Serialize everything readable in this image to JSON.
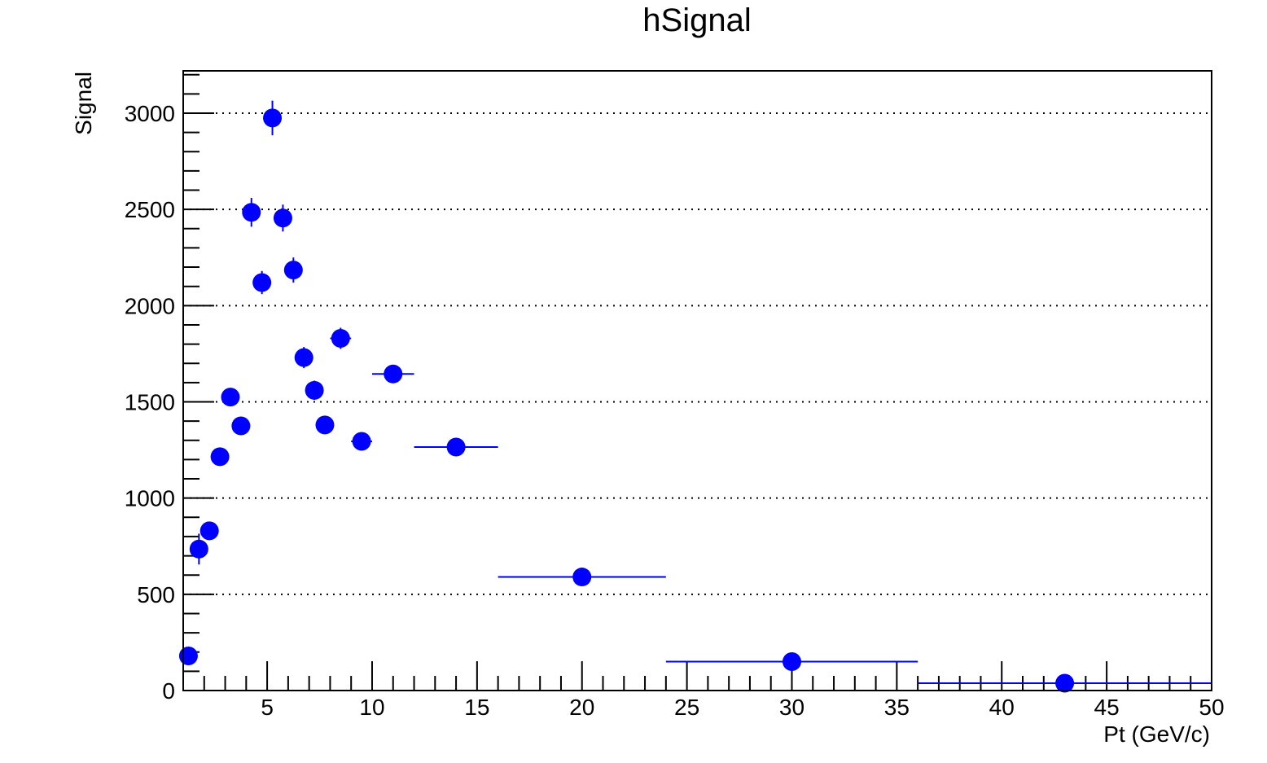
{
  "chart_data": {
    "type": "scatter",
    "title": "hSignal",
    "xlabel": "Pt (GeV/c)",
    "ylabel": "Signal",
    "xlim": [
      1,
      50
    ],
    "ylim": [
      0,
      3220
    ],
    "grid": "y-dotted",
    "x_ticks": [
      5,
      10,
      15,
      20,
      25,
      30,
      35,
      40,
      45,
      50
    ],
    "y_ticks": [
      0,
      500,
      1000,
      1500,
      2000,
      2500,
      3000
    ],
    "x_tick_labels": [
      "5",
      "10",
      "15",
      "20",
      "25",
      "30",
      "35",
      "40",
      "45",
      "50"
    ],
    "y_tick_labels": [
      "0",
      "500",
      "1000",
      "1500",
      "2000",
      "2500",
      "3000"
    ],
    "color": "#0000ff",
    "points": [
      {
        "x": 1.25,
        "xlo": 1.0,
        "xhi": 1.5,
        "y": 180,
        "yerr": 30
      },
      {
        "x": 1.75,
        "xlo": 1.5,
        "xhi": 2.0,
        "y": 735,
        "yerr": 80
      },
      {
        "x": 2.25,
        "xlo": 2.0,
        "xhi": 2.5,
        "y": 830,
        "yerr": 35
      },
      {
        "x": 2.75,
        "xlo": 2.5,
        "xhi": 3.0,
        "y": 1215,
        "yerr": 40
      },
      {
        "x": 3.25,
        "xlo": 3.0,
        "xhi": 3.5,
        "y": 1525,
        "yerr": 45
      },
      {
        "x": 3.75,
        "xlo": 3.5,
        "xhi": 4.0,
        "y": 1375,
        "yerr": 40
      },
      {
        "x": 4.25,
        "xlo": 4.0,
        "xhi": 4.5,
        "y": 2485,
        "yerr": 75
      },
      {
        "x": 4.75,
        "xlo": 4.5,
        "xhi": 5.0,
        "y": 2120,
        "yerr": 60
      },
      {
        "x": 5.25,
        "xlo": 5.0,
        "xhi": 5.5,
        "y": 2975,
        "yerr": 90
      },
      {
        "x": 5.75,
        "xlo": 5.5,
        "xhi": 6.0,
        "y": 2455,
        "yerr": 70
      },
      {
        "x": 6.25,
        "xlo": 6.0,
        "xhi": 6.5,
        "y": 2185,
        "yerr": 65
      },
      {
        "x": 6.75,
        "xlo": 6.5,
        "xhi": 7.0,
        "y": 1730,
        "yerr": 55
      },
      {
        "x": 7.25,
        "xlo": 7.0,
        "xhi": 7.5,
        "y": 1560,
        "yerr": 50
      },
      {
        "x": 7.75,
        "xlo": 7.5,
        "xhi": 8.0,
        "y": 1380,
        "yerr": 40
      },
      {
        "x": 8.5,
        "xlo": 8.0,
        "xhi": 9.0,
        "y": 1830,
        "yerr": 55
      },
      {
        "x": 9.5,
        "xlo": 9.0,
        "xhi": 10.0,
        "y": 1295,
        "yerr": 40
      },
      {
        "x": 11.0,
        "xlo": 10.0,
        "xhi": 12.0,
        "y": 1645,
        "yerr": 35
      },
      {
        "x": 14.0,
        "xlo": 12.0,
        "xhi": 16.0,
        "y": 1265,
        "yerr": 30
      },
      {
        "x": 20.0,
        "xlo": 16.0,
        "xhi": 24.0,
        "y": 590,
        "yerr": 20
      },
      {
        "x": 30.0,
        "xlo": 24.0,
        "xhi": 36.0,
        "y": 150,
        "yerr": 10
      },
      {
        "x": 43.0,
        "xlo": 36.0,
        "xhi": 50.0,
        "y": 38,
        "yerr": 5
      }
    ]
  }
}
